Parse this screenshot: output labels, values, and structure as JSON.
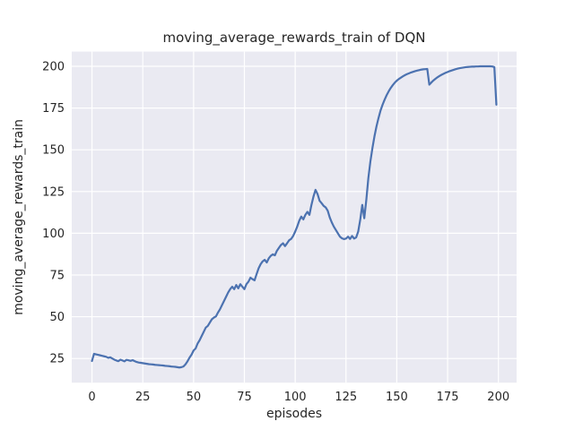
{
  "figure": {
    "title": "moving_average_rewards_train of DQN",
    "xlabel": "episodes",
    "ylabel": "moving_average_rewards_train"
  },
  "chart_data": {
    "type": "line",
    "title": "moving_average_rewards_train of DQN",
    "xlabel": "episodes",
    "ylabel": "moving_average_rewards_train",
    "x_ticks": [
      0,
      25,
      50,
      75,
      100,
      125,
      150,
      175,
      200
    ],
    "y_ticks": [
      25,
      50,
      75,
      100,
      125,
      150,
      175,
      200
    ],
    "xlim": [
      -9.95,
      208.95
    ],
    "ylim": [
      10.5,
      208.8
    ],
    "grid": true,
    "legend_position": "none",
    "style": {
      "line_color": "#4C72B0",
      "axes_background": "#EAEAF2",
      "grid_color": "#FFFFFF",
      "text_color": "#262626",
      "figure_background": "#FFFFFF"
    },
    "series": [
      {
        "name": "moving_average_rewards_train of DQN",
        "x_start": 0,
        "x_step": 1,
        "y": [
          23.5,
          27.8,
          27.5,
          27.2,
          26.9,
          26.6,
          26.3,
          26.0,
          25.4,
          25.7,
          25.0,
          24.3,
          23.8,
          23.4,
          24.3,
          23.8,
          23.3,
          24.2,
          23.9,
          23.6,
          24.0,
          23.4,
          22.9,
          22.6,
          22.4,
          22.2,
          22.0,
          21.8,
          21.6,
          21.5,
          21.4,
          21.2,
          21.1,
          21.0,
          20.9,
          20.8,
          20.6,
          20.5,
          20.4,
          20.2,
          20.1,
          20.0,
          19.8,
          19.6,
          19.8,
          20.2,
          21.5,
          23.3,
          25.5,
          27.3,
          29.8,
          31.0,
          34.0,
          36.0,
          38.5,
          41.0,
          43.5,
          44.5,
          46.5,
          48.5,
          49.5,
          50.2,
          52.5,
          54.5,
          57.0,
          59.5,
          62.0,
          64.5,
          66.5,
          68.0,
          66.5,
          69.0,
          67.0,
          69.5,
          68.0,
          66.5,
          69.5,
          71.0,
          73.4,
          72.5,
          71.8,
          75.5,
          79.0,
          81.5,
          83.2,
          84.1,
          82.5,
          85.0,
          86.5,
          87.4,
          86.8,
          89.5,
          91.3,
          93.0,
          94.0,
          92.3,
          94.0,
          95.8,
          96.6,
          98.4,
          101.0,
          104.0,
          107.5,
          110.0,
          108.3,
          111.0,
          112.8,
          111.0,
          117.0,
          122.0,
          126.0,
          123.5,
          119.5,
          118.0,
          116.4,
          115.5,
          113.5,
          109.5,
          106.5,
          104.0,
          102.0,
          100.0,
          98.0,
          97.0,
          96.5,
          96.8,
          98.0,
          96.6,
          98.4,
          96.8,
          97.5,
          101.0,
          108.0,
          117.0,
          109.0,
          120.0,
          133.0,
          143.0,
          151.0,
          158.0,
          164.0,
          169.0,
          173.5,
          177.0,
          180.0,
          182.7,
          185.0,
          187.0,
          188.7,
          190.2,
          191.4,
          192.4,
          193.2,
          194.0,
          194.7,
          195.3,
          195.8,
          196.3,
          196.7,
          197.1,
          197.4,
          197.7,
          198.0,
          198.2,
          198.3,
          198.4,
          189.0,
          190.3,
          191.5,
          192.5,
          193.4,
          194.2,
          194.9,
          195.5,
          196.1,
          196.6,
          197.1,
          197.5,
          197.9,
          198.3,
          198.6,
          198.9,
          199.1,
          199.3,
          199.5,
          199.6,
          199.7,
          199.8,
          199.8,
          199.9,
          199.9,
          200.0,
          200.0,
          200.0,
          200.0,
          200.0,
          200.0,
          199.9,
          199.5,
          177.0
        ]
      }
    ]
  }
}
